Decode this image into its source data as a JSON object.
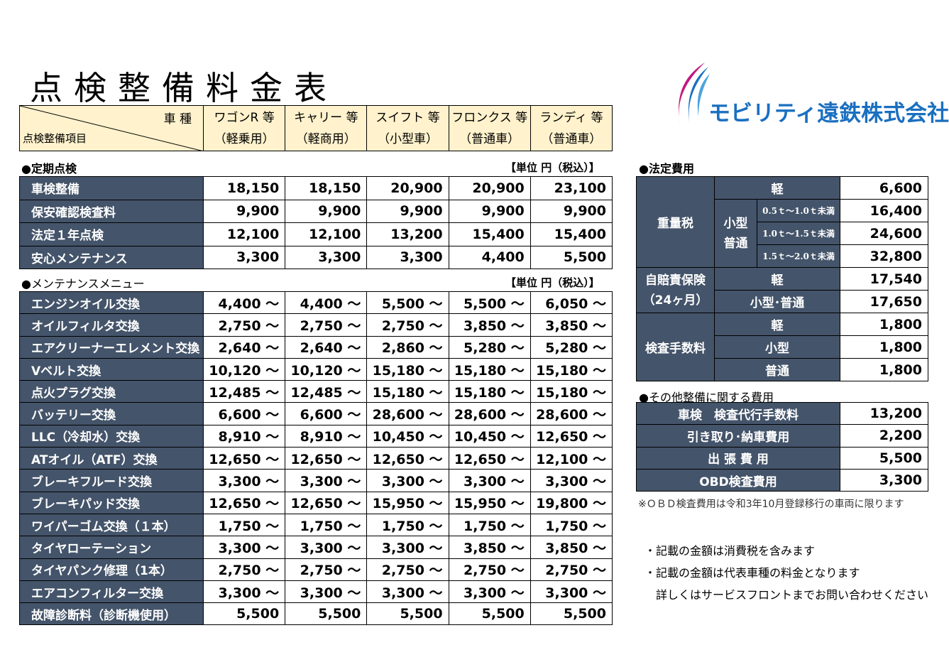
{
  "title": "点検整備料金表",
  "company": "モビリティ遠鉄株式会社",
  "colors": {
    "dark": "#44546a",
    "header": "#fff2cc",
    "logo_blue": "#1a6fc0",
    "logo_magenta": "#c2187f"
  },
  "header": {
    "diag_top": "車 種",
    "diag_bottom": "点検整備項目",
    "vehicles": [
      {
        "name": "ワゴンR 等",
        "type": "（軽乗用）"
      },
      {
        "name": "キャリー 等",
        "type": "（軽商用）"
      },
      {
        "name": "スイフト 等",
        "type": "（小型車）"
      },
      {
        "name": "フロンクス 等",
        "type": "（普通車）"
      },
      {
        "name": "ランディ 等",
        "type": "（普通車）"
      }
    ]
  },
  "periodic": {
    "label": "●定期点検",
    "unit": "【単位 円（税込）】",
    "rows": [
      {
        "item": "車検整備",
        "prices": [
          "18,150",
          "18,150",
          "20,900",
          "20,900",
          "23,100"
        ]
      },
      {
        "item": "保安確認検査料",
        "prices": [
          "9,900",
          "9,900",
          "9,900",
          "9,900",
          "9,900"
        ]
      },
      {
        "item": "法定１年点検",
        "prices": [
          "12,100",
          "12,100",
          "13,200",
          "15,400",
          "15,400"
        ]
      },
      {
        "item": "安心メンテナンス",
        "prices": [
          "3,300",
          "3,300",
          "3,300",
          "4,400",
          "5,500"
        ]
      }
    ]
  },
  "maintenance": {
    "label": "●メンテナンスメニュー",
    "unit": "【単位 円（税込）】",
    "rows": [
      {
        "item": "エンジンオイル交換",
        "prices": [
          "4,400 ～",
          "4,400 ～",
          "5,500 ～",
          "5,500 ～",
          "6,050 ～"
        ]
      },
      {
        "item": "オイルフィルタ交換",
        "prices": [
          "2,750 ～",
          "2,750 ～",
          "2,750 ～",
          "3,850 ～",
          "3,850 ～"
        ]
      },
      {
        "item": "エアクリーナーエレメント交換",
        "prices": [
          "2,640 ～",
          "2,640 ～",
          "2,860 ～",
          "5,280 ～",
          "5,280 ～"
        ]
      },
      {
        "item": "Vベルト交換",
        "prices": [
          "10,120 ～",
          "10,120 ～",
          "15,180 ～",
          "15,180 ～",
          "15,180 ～"
        ]
      },
      {
        "item": "点火プラグ交換",
        "prices": [
          "12,485 ～",
          "12,485 ～",
          "15,180 ～",
          "15,180 ～",
          "15,180 ～"
        ]
      },
      {
        "item": "バッテリー交換",
        "prices": [
          "6,600 ～",
          "6,600 ～",
          "28,600 ～",
          "28,600 ～",
          "28,600 ～"
        ]
      },
      {
        "item": "LLC（冷却水）交換",
        "prices": [
          "8,910 ～",
          "8,910 ～",
          "10,450 ～",
          "10,450 ～",
          "12,650 ～"
        ]
      },
      {
        "item": "ATオイル（ATF）交換",
        "prices": [
          "12,650 ～",
          "12,650 ～",
          "12,650 ～",
          "12,650 ～",
          "12,100 ～"
        ]
      },
      {
        "item": "ブレーキフルード交換",
        "prices": [
          "3,300 ～",
          "3,300 ～",
          "3,300 ～",
          "3,300 ～",
          "3,300 ～"
        ]
      },
      {
        "item": "ブレーキパッド交換",
        "prices": [
          "12,650 ～",
          "12,650 ～",
          "15,950 ～",
          "15,950 ～",
          "19,800 ～"
        ]
      },
      {
        "item": "ワイパーゴム交換（１本）",
        "prices": [
          "1,750 ～",
          "1,750 ～",
          "1,750 ～",
          "1,750 ～",
          "1,750 ～"
        ]
      },
      {
        "item": "タイヤローテーション",
        "prices": [
          "3,300 ～",
          "3,300 ～",
          "3,300 ～",
          "3,850 ～",
          "3,850 ～"
        ]
      },
      {
        "item": "タイヤパンク修理（1本）",
        "prices": [
          "2,750 ～",
          "2,750 ～",
          "2,750 ～",
          "2,750 ～",
          "2,750 ～"
        ]
      },
      {
        "item": "エアコンフィルター交換",
        "prices": [
          "3,300 ～",
          "3,300 ～",
          "3,300 ～",
          "3,300 ～",
          "3,300 ～"
        ]
      },
      {
        "item": "故障診断料（診断機使用）",
        "prices": [
          "5,500",
          "5,500",
          "5,500",
          "5,500",
          "5,500"
        ]
      }
    ]
  },
  "legal": {
    "label": "●法定費用",
    "weight_tax": {
      "label": "重量税",
      "kei": "軽",
      "kei_price": "6,600",
      "small_label": "小型普通",
      "ranges": [
        {
          "range": "0.5ｔ～1.0ｔ未満",
          "price": "16,400"
        },
        {
          "range": "1.0ｔ～1.5ｔ未満",
          "price": "24,600"
        },
        {
          "range": "1.5ｔ～2.0ｔ未満",
          "price": "32,800"
        }
      ]
    },
    "insurance": {
      "label": "自賠責保険",
      "period": "（24ヶ月）",
      "rows": [
        {
          "type": "軽",
          "price": "17,540"
        },
        {
          "type": "小型･普通",
          "price": "17,650"
        }
      ]
    },
    "inspection": {
      "label": "検査手数料",
      "rows": [
        {
          "type": "軽",
          "price": "1,800"
        },
        {
          "type": "小型",
          "price": "1,800"
        },
        {
          "type": "普通",
          "price": "1,800"
        }
      ]
    }
  },
  "other": {
    "label": "●その他整備に関する費用",
    "rows": [
      {
        "item": "車検　検査代行手数料",
        "price": "13,200"
      },
      {
        "item": "引き取り･納車費用",
        "price": "2,200"
      },
      {
        "item": "出 張 費 用",
        "price": "5,500"
      },
      {
        "item": "OBD検査費用",
        "price": "3,300"
      }
    ],
    "note": "※ＯＢＤ検査費用は令和3年10月登録移行の車両に限ります"
  },
  "notes": [
    "・記載の金額は消費税を含みます",
    "・記載の金額は代表車種の料金となります",
    "　詳しくはサービスフロントまでお問い合わせください"
  ]
}
